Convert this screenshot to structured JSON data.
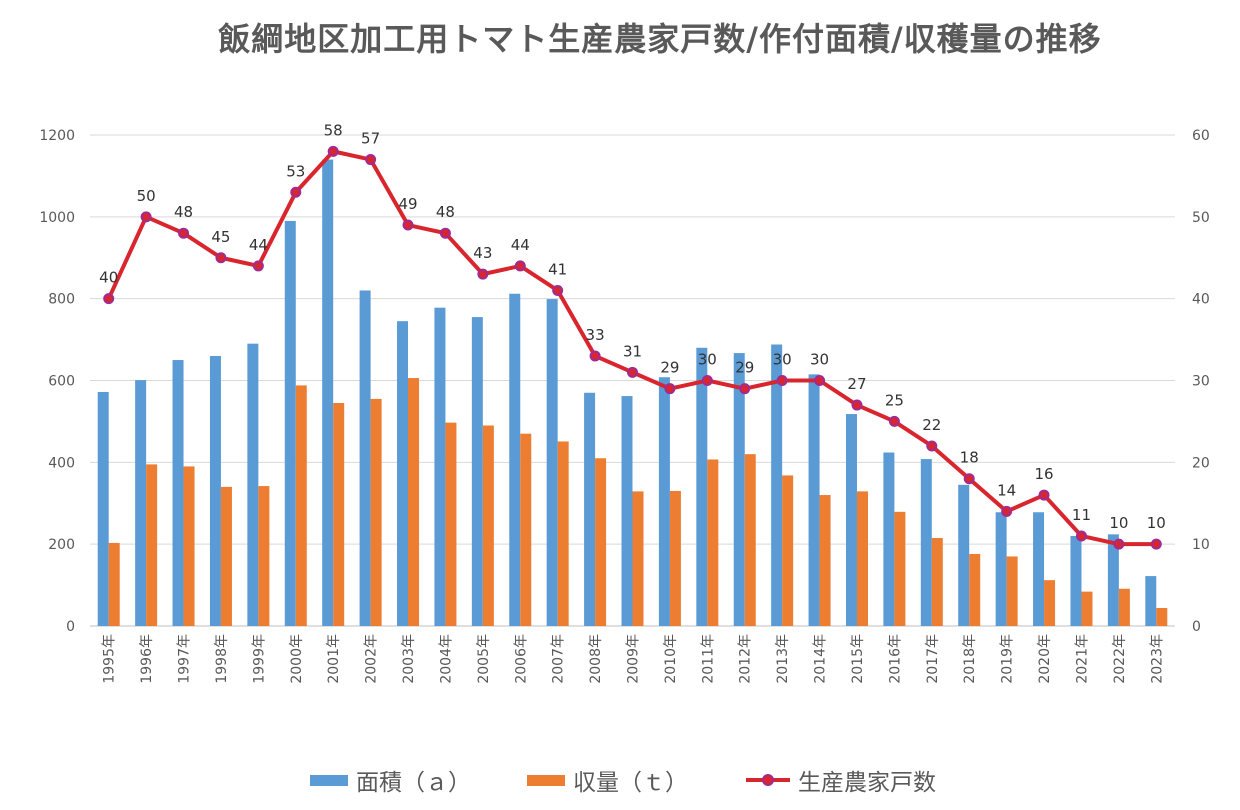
{
  "chart_data": {
    "type": "bar",
    "title": "飯綱地区加工用トマト生産農家戸数/作付面積/収穫量の推移",
    "categories": [
      "1995年",
      "1996年",
      "1997年",
      "1998年",
      "1999年",
      "2000年",
      "2001年",
      "2002年",
      "2003年",
      "2004年",
      "2005年",
      "2006年",
      "2007年",
      "2008年",
      "2009年",
      "2010年",
      "2011年",
      "2012年",
      "2013年",
      "2014年",
      "2015年",
      "2016年",
      "2017年",
      "2018年",
      "2019年",
      "2020年",
      "2021年",
      "2022年",
      "2023年"
    ],
    "series": [
      {
        "name": "面積（ａ）",
        "type": "bar",
        "axis": "left",
        "color": "#5b9bd5",
        "values": [
          572,
          601,
          650,
          660,
          690,
          990,
          1140,
          820,
          745,
          778,
          755,
          812,
          799,
          570,
          562,
          608,
          680,
          667,
          688,
          615,
          518,
          424,
          408,
          345,
          278,
          278,
          220,
          224,
          122
        ]
      },
      {
        "name": "収量（ｔ）",
        "type": "bar",
        "axis": "left",
        "color": "#ed7d31",
        "values": [
          203,
          395,
          390,
          340,
          342,
          588,
          545,
          555,
          606,
          497,
          490,
          470,
          451,
          410,
          329,
          330,
          407,
          420,
          368,
          320,
          329,
          279,
          215,
          176,
          170,
          112,
          84,
          91,
          44
        ]
      },
      {
        "name": "生産農家戸数",
        "type": "line",
        "axis": "right",
        "color": "#d9252d",
        "marker_color": "#a02b93",
        "values": [
          40,
          50,
          48,
          45,
          44,
          53,
          58,
          57,
          49,
          48,
          43,
          44,
          41,
          33,
          31,
          29,
          30,
          29,
          30,
          30,
          27,
          25,
          22,
          18,
          14,
          16,
          11,
          10,
          10
        ]
      }
    ],
    "y_left": {
      "min": 0,
      "max": 1200,
      "ticks": [
        0,
        200,
        400,
        600,
        800,
        1000,
        1200
      ]
    },
    "y_right": {
      "min": 0,
      "max": 60,
      "ticks": [
        0,
        10,
        20,
        30,
        40,
        50,
        60
      ]
    },
    "grid": true,
    "legend": "bottom"
  }
}
